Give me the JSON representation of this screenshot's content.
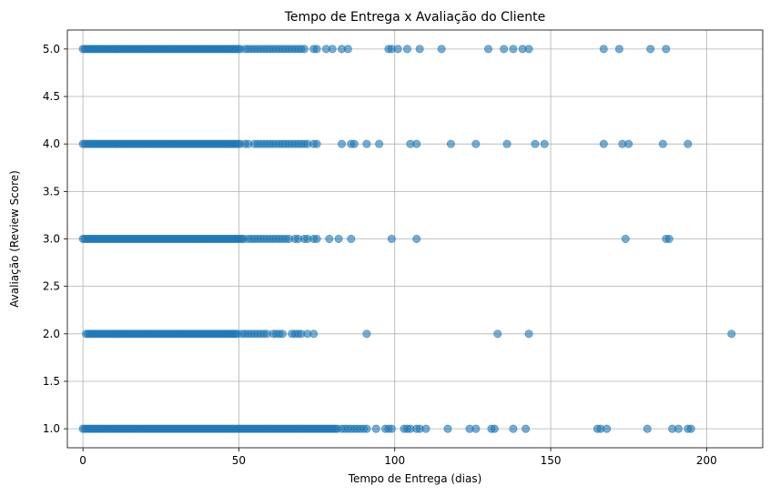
{
  "chart_data": {
    "type": "scatter",
    "title": "Tempo de Entrega x Avaliação do Cliente",
    "xlabel": "Tempo de Entrega (dias)",
    "ylabel": "Avaliação (Review Score)",
    "xlim": [
      -5,
      218
    ],
    "ylim": [
      0.8,
      5.2
    ],
    "xticks": [
      0,
      50,
      100,
      150,
      200
    ],
    "yticks": [
      1.0,
      1.5,
      2.0,
      2.5,
      3.0,
      3.5,
      4.0,
      4.5,
      5.0
    ],
    "xtick_labels": [
      "0",
      "50",
      "100",
      "150",
      "200"
    ],
    "ytick_labels": [
      "1.0",
      "1.5",
      "2.0",
      "2.5",
      "3.0",
      "3.5",
      "4.0",
      "4.5",
      "5.0"
    ],
    "grid": true,
    "marker_color": "#1f77b4",
    "marker_alpha": 0.6,
    "series": [
      {
        "dense_ranges": [
          {
            "y": 5.0,
            "from": 0,
            "to": 51
          },
          {
            "y": 4.0,
            "from": 0,
            "to": 51
          },
          {
            "y": 3.0,
            "from": 0,
            "to": 52
          },
          {
            "y": 2.0,
            "from": 1,
            "to": 50
          },
          {
            "y": 1.0,
            "from": 0,
            "to": 82
          }
        ],
        "points": [
          {
            "y": 5.0,
            "x": [
              52,
              53,
              54,
              55,
              56,
              57,
              58,
              59,
              60,
              61,
              62,
              63,
              64,
              65,
              66,
              67,
              68,
              69,
              70,
              71,
              74,
              75,
              78,
              80,
              83,
              85,
              98,
              99,
              101,
              104,
              108,
              115,
              130,
              135,
              138,
              141,
              143,
              167,
              172,
              182,
              187
            ]
          },
          {
            "y": 4.0,
            "x": [
              52,
              53,
              55,
              56,
              57,
              58,
              59,
              60,
              61,
              62,
              63,
              64,
              65,
              66,
              67,
              68,
              69,
              70,
              71,
              72,
              74,
              75,
              83,
              86,
              87,
              91,
              95,
              105,
              107,
              118,
              126,
              136,
              145,
              148,
              167,
              173,
              175,
              186,
              194
            ]
          },
          {
            "y": 3.0,
            "x": [
              53,
              54,
              55,
              56,
              57,
              58,
              59,
              60,
              61,
              62,
              63,
              64,
              65,
              66,
              68,
              69,
              71,
              72,
              74,
              75,
              79,
              82,
              86,
              99,
              107,
              174,
              187,
              188
            ]
          },
          {
            "y": 2.0,
            "x": [
              51,
              52,
              53,
              54,
              55,
              56,
              57,
              58,
              59,
              61,
              62,
              63,
              64,
              67,
              68,
              69,
              70,
              72,
              74,
              91,
              133,
              143,
              208
            ]
          },
          {
            "y": 1.0,
            "x": [
              83,
              84,
              85,
              86,
              87,
              88,
              89,
              90,
              91,
              94,
              97,
              98,
              99,
              103,
              104,
              105,
              107,
              108,
              110,
              117,
              124,
              126,
              131,
              132,
              138,
              142,
              165,
              166,
              168,
              181,
              189,
              191,
              194,
              195
            ]
          }
        ]
      }
    ]
  }
}
